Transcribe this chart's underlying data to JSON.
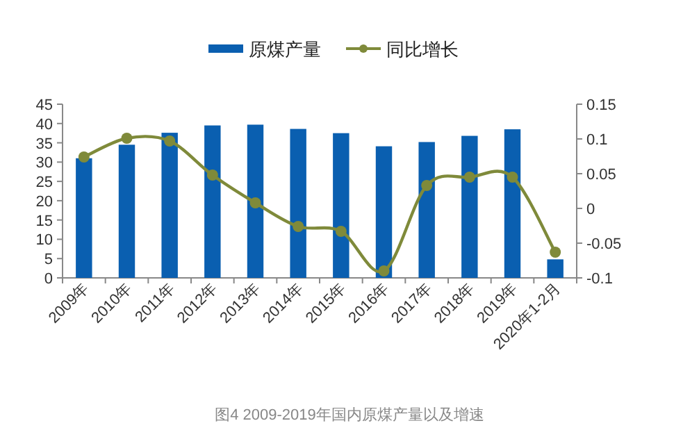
{
  "chart_data": {
    "type": "bar",
    "annotations": [
      "图4 2009-2019年国内原煤产量以及增速"
    ],
    "categories": [
      "2009年",
      "2010年",
      "2011年",
      "2012年",
      "2013年",
      "2014年",
      "2015年",
      "2016年",
      "2017年",
      "2018年",
      "2019年",
      "2020年1-2月"
    ],
    "series": [
      {
        "name": "原煤产量",
        "color": "#0a5fb0",
        "values": [
          31,
          34.5,
          37.6,
          39.5,
          39.7,
          38.6,
          37.5,
          34.1,
          35.2,
          36.8,
          38.5,
          4.8
        ]
      },
      {
        "name": "同比增长",
        "type": "line",
        "axis": "y2",
        "color": "#7f8a3a",
        "marker": "circle",
        "values": [
          0.074,
          0.101,
          0.097,
          0.048,
          0.008,
          -0.026,
          -0.033,
          -0.09,
          0.033,
          0.045,
          0.045,
          -0.063
        ]
      }
    ],
    "ylim": [
      0,
      45
    ],
    "yticks": [
      0,
      5,
      10,
      15,
      20,
      25,
      30,
      35,
      40,
      45
    ],
    "y2lim": [
      -0.1,
      0.15
    ],
    "y2ticks": [
      -0.1,
      -0.05,
      0,
      0.05,
      0.1,
      0.15
    ],
    "grid": false,
    "legend": "top"
  }
}
